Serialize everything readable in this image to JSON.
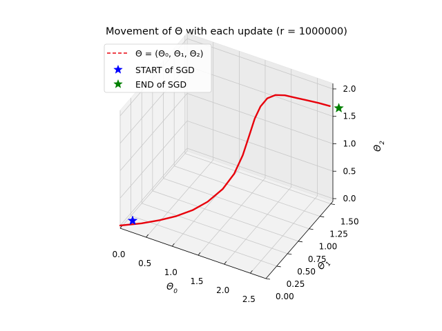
{
  "chart_data": {
    "type": "line3d",
    "title": "Movement of Θ with each update (r = 1000000)",
    "axes": {
      "x": {
        "label": "Θ",
        "sub": "0",
        "ticks": [
          0.0,
          0.5,
          1.0,
          1.5,
          2.0,
          2.5
        ],
        "tick_labels": [
          "0.0",
          "0.5",
          "1.0",
          "1.5",
          "2.0",
          "2.5"
        ],
        "range": [
          0.0,
          2.8
        ]
      },
      "y": {
        "label": "Θ",
        "sub": "1",
        "ticks": [
          0.0,
          0.25,
          0.5,
          0.75,
          1.0,
          1.25,
          1.5
        ],
        "tick_labels": [
          "0.00",
          "0.25",
          "0.50",
          "0.75",
          "1.00",
          "1.25",
          "1.50"
        ],
        "range": [
          0.0,
          1.55
        ]
      },
      "z": {
        "label": "Θ",
        "sub": "2",
        "ticks": [
          0.0,
          0.5,
          1.0,
          1.5,
          2.0
        ],
        "tick_labels": [
          "0.0",
          "0.5",
          "1.0",
          "1.5",
          "2.0"
        ],
        "range": [
          -0.05,
          2.1
        ]
      }
    },
    "grid": true,
    "legend_position": "upper-left",
    "series": [
      {
        "name": "Θ = (Θ₀, Θ₁, Θ₂)",
        "style": "dashed-line",
        "color": "#e8000b",
        "points": [
          [
            0.0,
            0.0,
            0.0
          ],
          [
            0.3,
            0.13,
            0.02
          ],
          [
            0.55,
            0.25,
            0.05
          ],
          [
            0.78,
            0.36,
            0.1
          ],
          [
            1.0,
            0.47,
            0.18
          ],
          [
            1.2,
            0.58,
            0.3
          ],
          [
            1.4,
            0.69,
            0.5
          ],
          [
            1.55,
            0.77,
            0.75
          ],
          [
            1.65,
            0.85,
            1.05
          ],
          [
            1.72,
            0.92,
            1.38
          ],
          [
            1.78,
            0.97,
            1.65
          ],
          [
            1.85,
            1.02,
            1.85
          ],
          [
            1.93,
            1.08,
            1.97
          ],
          [
            2.03,
            1.15,
            2.0
          ],
          [
            2.15,
            1.22,
            1.97
          ],
          [
            2.3,
            1.3,
            1.9
          ],
          [
            2.45,
            1.38,
            1.83
          ],
          [
            2.6,
            1.46,
            1.76
          ],
          [
            2.75,
            1.54,
            1.68
          ]
        ]
      },
      {
        "name": "START of SGD",
        "style": "marker-star",
        "color": "#0000ff",
        "points": [
          [
            0.0,
            0.0,
            0.0
          ]
        ]
      },
      {
        "name": "END of SGD",
        "style": "marker-star",
        "color": "#008000",
        "points": [
          [
            2.75,
            1.54,
            1.68
          ]
        ]
      }
    ]
  }
}
